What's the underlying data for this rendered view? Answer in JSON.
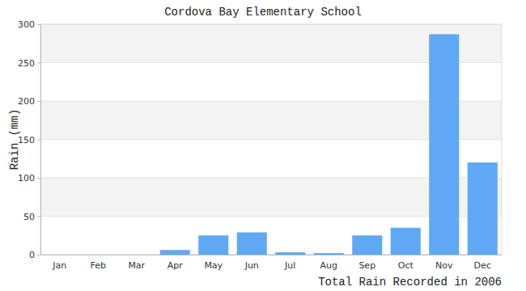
{
  "chart_data": {
    "type": "bar",
    "title": "Cordova Bay Elementary School",
    "x_label": "Total Rain Recorded in 2006",
    "y_label": "Rain (mm)",
    "categories": [
      "Jan",
      "Feb",
      "Mar",
      "Apr",
      "May",
      "Jun",
      "Jul",
      "Aug",
      "Sep",
      "Oct",
      "Nov",
      "Dec"
    ],
    "values": [
      0,
      0,
      0,
      6,
      25,
      29,
      3,
      2,
      25,
      35,
      287,
      120
    ],
    "color": "#5fa8f5",
    "ylim": [
      0,
      300
    ],
    "yticks": [
      0,
      50,
      100,
      150,
      200,
      250,
      300
    ],
    "grid": true
  }
}
